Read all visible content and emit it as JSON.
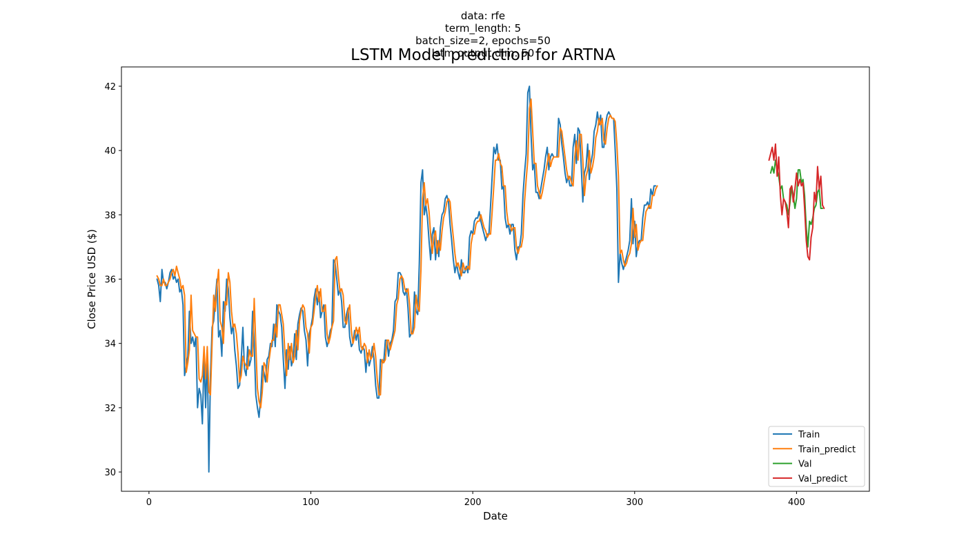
{
  "header": {
    "subtitle_lines": [
      "data: rfe",
      "term_length: 5",
      "batch_size=2, epochs=50",
      "lstm output dim: 50"
    ],
    "title": "LSTM Model prediction for ARTNA"
  },
  "chart_data": {
    "type": "line",
    "title": "LSTM Model prediction for ARTNA",
    "xlabel": "Date",
    "ylabel": "Close Price USD ($)",
    "xlim": [
      -17,
      445
    ],
    "ylim": [
      29.4,
      42.6
    ],
    "xticks": [
      0,
      100,
      200,
      300,
      400
    ],
    "yticks": [
      30,
      32,
      34,
      36,
      38,
      40,
      42
    ],
    "legend_position": "lower-right",
    "grid": false,
    "series": [
      {
        "name": "Train",
        "color": "#1f77b4",
        "x_start": 5,
        "values": [
          36.0,
          35.8,
          35.3,
          36.3,
          35.9,
          35.9,
          35.7,
          35.9,
          36.2,
          36.3,
          36.0,
          36.1,
          35.9,
          36.0,
          35.6,
          35.7,
          35.2,
          33.0,
          33.3,
          33.6,
          35.0,
          34.0,
          34.2,
          33.9,
          34.2,
          32.0,
          32.6,
          32.4,
          31.5,
          33.6,
          32.0,
          33.8,
          30.0,
          33.0,
          34.5,
          34.7,
          35.4,
          36.0,
          34.2,
          34.4,
          33.6,
          35.3,
          35.0,
          36.0,
          35.7,
          34.8,
          34.3,
          34.6,
          33.8,
          33.3,
          32.6,
          32.7,
          33.5,
          34.5,
          33.2,
          33.0,
          33.9,
          33.3,
          33.5,
          35.0,
          34.0,
          32.4,
          32.0,
          31.7,
          32.3,
          33.3,
          33.1,
          32.8,
          33.5,
          33.6,
          34.0,
          33.9,
          34.6,
          33.9,
          35.2,
          35.0,
          34.9,
          34.5,
          33.5,
          32.6,
          33.8,
          33.2,
          33.9,
          33.3,
          33.5,
          34.3,
          33.5,
          34.6,
          34.9,
          35.1,
          35.0,
          34.4,
          34.1,
          33.3,
          34.3,
          34.5,
          34.8,
          35.4,
          35.7,
          35.2,
          35.6,
          34.8,
          35.0,
          35.2,
          34.2,
          33.9,
          34.1,
          34.4,
          34.5,
          36.6,
          36.5,
          36.0,
          35.5,
          35.7,
          35.3,
          34.5,
          34.5,
          34.9,
          35.1,
          34.2,
          33.9,
          34.0,
          34.4,
          34.1,
          34.4,
          33.8,
          33.7,
          33.9,
          33.8,
          33.1,
          33.7,
          33.3,
          33.5,
          33.9,
          33.5,
          32.7,
          32.3,
          32.3,
          33.5,
          33.4,
          33.4,
          34.1,
          34.1,
          33.6,
          34.0,
          34.1,
          34.4,
          35.3,
          35.4,
          36.2,
          36.2,
          36.1,
          35.6,
          35.5,
          35.7,
          35.1,
          34.2,
          34.3,
          34.4,
          35.6,
          35.0,
          34.9,
          36.5,
          39.0,
          39.4,
          38.0,
          38.3,
          37.9,
          37.2,
          36.6,
          37.4,
          37.6,
          36.6,
          37.2,
          36.7,
          37.6,
          38.0,
          38.1,
          38.5,
          38.6,
          38.4,
          37.7,
          37.2,
          36.6,
          36.2,
          36.5,
          36.2,
          36.0,
          36.6,
          36.2,
          36.2,
          36.4,
          36.2,
          37.3,
          37.5,
          37.4,
          37.8,
          37.9,
          37.9,
          38.1,
          37.8,
          37.6,
          37.4,
          37.2,
          37.4,
          37.4,
          38.3,
          39.2,
          40.1,
          39.9,
          40.2,
          39.7,
          39.7,
          38.8,
          38.9,
          37.9,
          37.6,
          37.7,
          37.4,
          37.7,
          37.7,
          36.9,
          36.6,
          37.0,
          37.0,
          37.4,
          38.6,
          39.3,
          39.9,
          41.8,
          42.0,
          40.5,
          39.4,
          39.6,
          38.7,
          38.7,
          38.5,
          38.8,
          39.1,
          39.4,
          39.8,
          40.1,
          39.4,
          39.8,
          39.9,
          39.8,
          39.8,
          39.8,
          41.0,
          40.8,
          40.2,
          39.8,
          39.3,
          39.0,
          39.2,
          38.9,
          38.9,
          40.1,
          40.5,
          39.6,
          40.7,
          40.6,
          39.5,
          38.4,
          39.3,
          39.5,
          40.2,
          39.1,
          39.6,
          39.9,
          40.6,
          40.8,
          41.2,
          40.8,
          41.1,
          40.1,
          40.1,
          40.8,
          41.1,
          41.2,
          41.1,
          41.0,
          41.0,
          40.0,
          38.8,
          35.9,
          36.8,
          36.5,
          36.3,
          36.5,
          36.7,
          36.9,
          37.2,
          38.5,
          37.1,
          37.8,
          36.7,
          37.1,
          37.2,
          37.2,
          37.9,
          38.3,
          38.3,
          38.4,
          38.2,
          38.8,
          38.6,
          38.9,
          38.9
        ]
      },
      {
        "name": "Train_predict",
        "color": "#ff7f0e",
        "x_start": 5,
        "values": [
          36.1,
          36.0,
          35.8,
          35.8,
          36.0,
          35.8,
          35.8,
          35.9,
          36.0,
          36.2,
          36.3,
          36.1,
          36.4,
          36.2,
          36.0,
          35.7,
          35.8,
          35.5,
          33.1,
          33.4,
          33.8,
          35.5,
          34.4,
          34.3,
          34.2,
          34.2,
          32.9,
          32.8,
          33.0,
          33.9,
          32.9,
          33.9,
          32.5,
          32.4,
          34.0,
          35.5,
          35.0,
          35.8,
          36.3,
          34.7,
          34.5,
          34.0,
          35.3,
          35.2,
          36.2,
          35.9,
          35.0,
          34.5,
          34.6,
          34.3,
          33.7,
          32.8,
          33.0,
          33.6,
          33.4,
          33.3,
          33.2,
          33.8,
          33.6,
          33.6,
          35.4,
          34.0,
          32.6,
          32.2,
          32.0,
          32.5,
          33.4,
          33.3,
          32.8,
          33.4,
          33.8,
          34.1,
          34.1,
          34.6,
          34.2,
          35.2,
          35.2,
          34.9,
          34.6,
          33.7,
          33.0,
          34.0,
          33.5,
          34.0,
          33.4,
          33.6,
          34.4,
          33.8,
          34.7,
          35.0,
          35.2,
          35.1,
          34.5,
          34.3,
          33.7,
          34.5,
          34.6,
          35.0,
          35.5,
          35.8,
          35.3,
          35.7,
          35.0,
          35.0,
          35.2,
          34.3,
          34.0,
          34.2,
          34.5,
          34.7,
          36.6,
          36.7,
          36.1,
          35.6,
          35.7,
          35.5,
          34.7,
          34.6,
          35.0,
          35.2,
          34.4,
          34.0,
          34.2,
          34.5,
          34.3,
          34.5,
          33.9,
          33.8,
          34.0,
          33.9,
          33.4,
          33.8,
          33.5,
          33.6,
          34.0,
          33.6,
          32.9,
          32.4,
          32.4,
          33.5,
          33.4,
          33.5,
          34.1,
          34.1,
          33.8,
          34.0,
          34.2,
          34.4,
          35.2,
          35.4,
          36.0,
          36.1,
          36.0,
          35.7,
          35.6,
          35.7,
          35.2,
          34.3,
          34.3,
          34.5,
          35.5,
          35.1,
          35.0,
          36.3,
          38.5,
          39.0,
          38.3,
          38.5,
          38.1,
          37.4,
          36.8,
          37.3,
          37.5,
          36.8,
          37.2,
          36.9,
          37.5,
          37.9,
          38.1,
          38.4,
          38.5,
          38.4,
          37.8,
          37.3,
          36.8,
          36.4,
          36.5,
          36.3,
          36.1,
          36.5,
          36.3,
          36.3,
          36.4,
          36.3,
          37.1,
          37.4,
          37.4,
          37.7,
          37.8,
          37.8,
          38.0,
          37.8,
          37.6,
          37.5,
          37.3,
          37.4,
          37.4,
          38.1,
          38.9,
          39.7,
          39.7,
          39.9,
          39.6,
          39.5,
          38.9,
          38.9,
          38.1,
          37.7,
          37.7,
          37.5,
          37.6,
          37.6,
          37.0,
          36.8,
          37.0,
          37.0,
          37.3,
          38.4,
          39.1,
          39.7,
          41.3,
          41.6,
          40.6,
          39.6,
          39.6,
          38.9,
          38.7,
          38.5,
          38.7,
          39.0,
          39.3,
          39.6,
          39.9,
          39.5,
          39.7,
          39.8,
          39.8,
          39.8,
          39.8,
          40.7,
          40.6,
          40.2,
          39.8,
          39.4,
          39.1,
          39.2,
          39.0,
          38.9,
          39.8,
          40.3,
          39.7,
          40.5,
          40.5,
          39.7,
          38.6,
          39.2,
          39.4,
          40.0,
          39.3,
          39.5,
          39.8,
          40.4,
          40.6,
          41.0,
          40.8,
          41.0,
          40.3,
          40.2,
          40.7,
          41.0,
          41.1,
          41.0,
          41.0,
          40.9,
          40.2,
          39.2,
          36.8,
          36.9,
          36.6,
          36.4,
          36.5,
          36.7,
          36.8,
          37.1,
          38.2,
          37.3,
          37.7,
          36.9,
          37.1,
          37.2,
          37.2,
          37.7,
          38.1,
          38.2,
          38.3,
          38.2,
          38.6,
          38.6,
          38.8,
          38.9
        ]
      },
      {
        "name": "Val",
        "color": "#2ca02c",
        "x_start": 384,
        "values": [
          39.3,
          39.5,
          39.3,
          39.7,
          39.4,
          39.2,
          38.8,
          38.9,
          38.5,
          38.4,
          38.3,
          38.0,
          38.4,
          38.9,
          38.6,
          38.2,
          38.5,
          39.4,
          39.4,
          39.0,
          39.1,
          38.6,
          37.6,
          37.0,
          37.8,
          37.7,
          37.9,
          38.2,
          38.3,
          38.7,
          38.8,
          38.2,
          38.2
        ]
      },
      {
        "name": "Val_predict",
        "color": "#d62728",
        "x_start": 383,
        "values": [
          39.7,
          39.9,
          40.1,
          39.7,
          40.2,
          39.2,
          39.8,
          38.6,
          38.0,
          38.5,
          38.4,
          38.1,
          37.6,
          38.8,
          38.9,
          38.4,
          38.8,
          39.3,
          38.9,
          39.1,
          38.9,
          39.0,
          38.2,
          37.2,
          36.7,
          36.6,
          37.3,
          37.6,
          38.7,
          38.4,
          39.5,
          38.8,
          39.2,
          38.3,
          38.2
        ]
      }
    ]
  }
}
